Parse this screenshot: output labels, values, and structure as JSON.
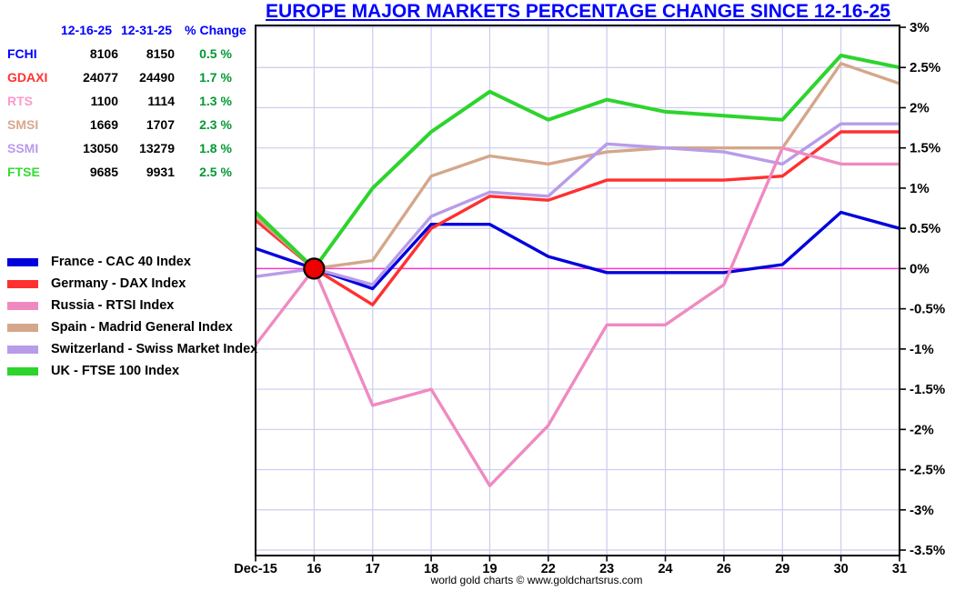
{
  "title": {
    "text": "EUROPE MAJOR MARKETS PERCENTAGE CHANGE SINCE 12-16-25",
    "color": "#0000ff"
  },
  "quote_table": {
    "headers": [
      "12-16-25",
      "12-31-25",
      "% Change"
    ],
    "header_color": "#0000ff",
    "change_color": "#009933",
    "rows": [
      {
        "symbol": "FCHI",
        "symbol_color": "#0000ff",
        "start": "8106",
        "end": "8150",
        "change": "0.5 %"
      },
      {
        "symbol": "GDAXI",
        "symbol_color": "#ff3333",
        "start": "24077",
        "end": "24490",
        "change": "1.7 %"
      },
      {
        "symbol": "RTS",
        "symbol_color": "#ff99cc",
        "start": "1100",
        "end": "1114",
        "change": "1.3 %"
      },
      {
        "symbol": "SMSI",
        "symbol_color": "#d8a88c",
        "start": "1669",
        "end": "1707",
        "change": "2.3 %"
      },
      {
        "symbol": "SSMI",
        "symbol_color": "#bb99ee",
        "start": "13050",
        "end": "13279",
        "change": "1.8 %"
      },
      {
        "symbol": "FTSE",
        "symbol_color": "#33dd33",
        "start": "9685",
        "end": "9931",
        "change": "2.5 %"
      }
    ]
  },
  "chart_data": {
    "type": "line",
    "title": "EUROPE MAJOR MARKETS PERCENTAGE CHANGE SINCE 12-16-25",
    "x_labels": [
      "Dec-15",
      "16",
      "17",
      "18",
      "19",
      "22",
      "23",
      "24",
      "26",
      "29",
      "30",
      "31"
    ],
    "ylim": [
      -3.5,
      3
    ],
    "ytick_step": 0.5,
    "ytick_labels": [
      "3%",
      "2.5%",
      "2%",
      "1.5%",
      "1%",
      "0.5%",
      "0%",
      "-0.5%",
      "-1%",
      "-1.5%",
      "-2%",
      "-2.5%",
      "-3%",
      "-3.5%"
    ],
    "grid": true,
    "grid_color": "#ccccee",
    "zero_line_color": "#ff33cc",
    "frame_color": "#000000",
    "marker": {
      "x_index": 1,
      "value": 0,
      "fill": "#ee0000",
      "stroke": "#000000"
    },
    "legend_position": "left-middle-outside",
    "series": [
      {
        "name": "FCHI",
        "legend": "France - CAC 40 Index",
        "color": "#0000dd",
        "values": [
          0.25,
          0,
          -0.25,
          0.55,
          0.55,
          0.15,
          -0.05,
          -0.05,
          -0.05,
          0.05,
          0.7,
          0.5
        ]
      },
      {
        "name": "GDAXI",
        "legend": "Germany - DAX Index",
        "color": "#ff3030",
        "values": [
          0.6,
          0,
          -0.45,
          0.5,
          0.9,
          0.85,
          1.1,
          1.1,
          1.1,
          1.15,
          1.7,
          1.7
        ]
      },
      {
        "name": "RTS",
        "legend": "Russia - RTSI Index",
        "color": "#ef8ac1",
        "values": [
          -0.95,
          0,
          -1.7,
          -1.5,
          -2.7,
          -1.95,
          -0.7,
          -0.7,
          -0.2,
          1.5,
          1.3,
          1.3
        ]
      },
      {
        "name": "SMSI",
        "legend": "Spain - Madrid General Index",
        "color": "#d4a78a",
        "values": [
          0.65,
          0,
          0.1,
          1.15,
          1.4,
          1.3,
          1.45,
          1.5,
          1.5,
          1.5,
          2.55,
          2.3
        ]
      },
      {
        "name": "SSMI",
        "legend": "Switzerland - Swiss Market Index",
        "color": "#b89ce8",
        "values": [
          -0.1,
          0,
          -0.2,
          0.65,
          0.95,
          0.9,
          1.55,
          1.5,
          1.45,
          1.3,
          1.8,
          1.8
        ]
      },
      {
        "name": "FTSE",
        "legend": "UK - FTSE 100 Index",
        "color": "#2dd42d",
        "values": [
          0.7,
          0,
          1.0,
          1.7,
          2.2,
          1.85,
          2.1,
          1.95,
          1.9,
          1.85,
          2.65,
          2.5
        ]
      }
    ],
    "draw_order": [
      0,
      1,
      3,
      5,
      4,
      2
    ]
  },
  "footer": {
    "credit": "world gold charts © www.goldchartsrus.com"
  }
}
